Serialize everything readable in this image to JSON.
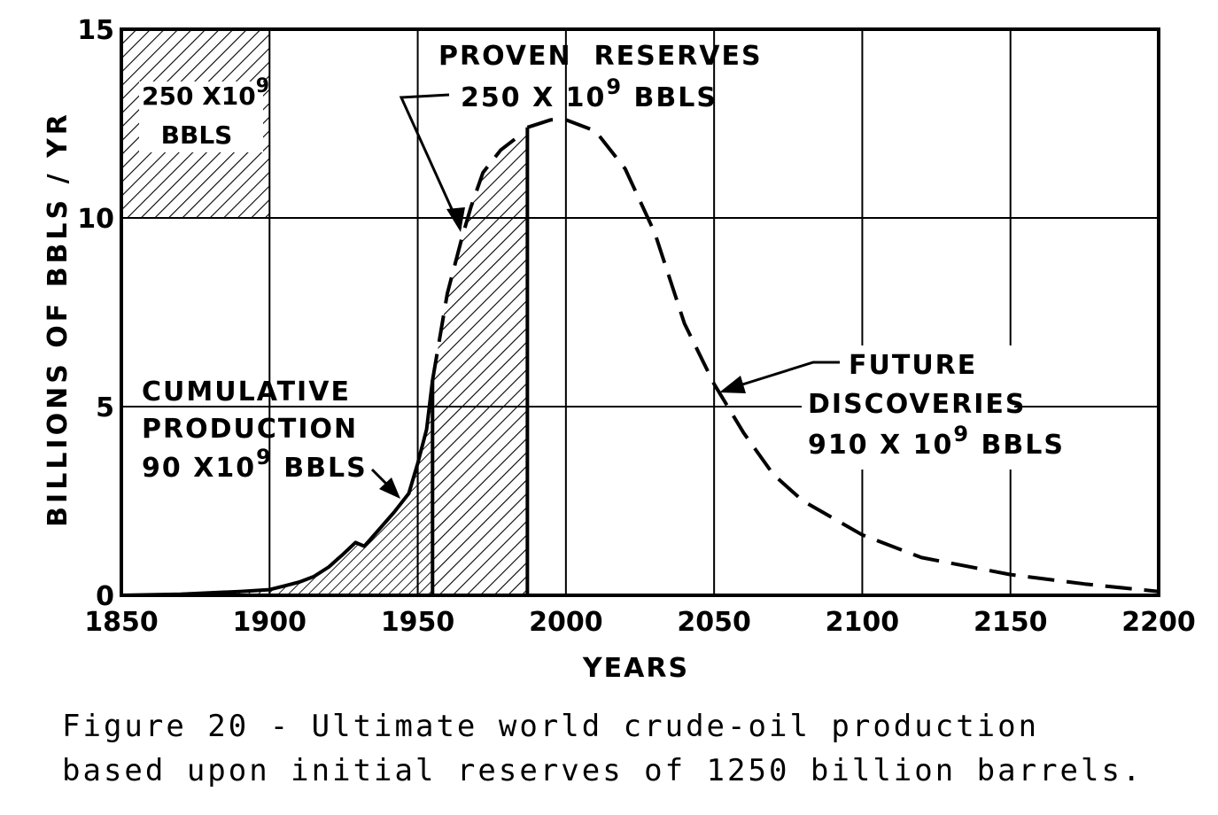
{
  "chart_data": {
    "type": "area",
    "title": "Ultimate world crude-oil production",
    "xlabel": "YEARS",
    "ylabel": "BILLIONS OF BBLS / YR",
    "xlim": [
      1850,
      2200
    ],
    "ylim": [
      0,
      15
    ],
    "xticks": [
      1850,
      1900,
      1950,
      2000,
      2050,
      2100,
      2150,
      2200
    ],
    "yticks": [
      0,
      5,
      10,
      15
    ],
    "grid": true,
    "series": [
      {
        "name": "Cumulative production (historical)",
        "style": "solid, hatched",
        "x": [
          1850,
          1870,
          1890,
          1900,
          1905,
          1910,
          1915,
          1920,
          1925,
          1929,
          1932,
          1937,
          1942,
          1947,
          1950,
          1953,
          1955
        ],
        "y": [
          0,
          0.03,
          0.1,
          0.15,
          0.25,
          0.35,
          0.5,
          0.75,
          1.1,
          1.4,
          1.3,
          1.75,
          2.2,
          2.7,
          3.5,
          4.4,
          5.7
        ]
      },
      {
        "name": "Proven reserves segment",
        "style": "dashed, hatched",
        "x": [
          1955,
          1960,
          1965,
          1968,
          1972,
          1978,
          1983,
          1987
        ],
        "y": [
          5.7,
          8.0,
          9.5,
          10.3,
          11.2,
          11.8,
          12.1,
          12.2
        ]
      },
      {
        "name": "Future discoveries (projected)",
        "style": "dashed",
        "x": [
          1987,
          1995,
          2000,
          2010,
          2020,
          2030,
          2040,
          2050,
          2060,
          2070,
          2080,
          2100,
          2120,
          2150,
          2175,
          2200
        ],
        "y": [
          12.4,
          12.6,
          12.6,
          12.3,
          11.3,
          9.6,
          7.2,
          5.6,
          4.3,
          3.2,
          2.5,
          1.6,
          1.0,
          0.55,
          0.3,
          0.1
        ]
      }
    ],
    "annotations": [
      {
        "text": [
          "250 X10",
          "9",
          "BBLS"
        ],
        "target": "legend scale box"
      },
      {
        "text": [
          "PROVEN  RESERVES",
          "250 X 10",
          "9",
          " BBLS"
        ],
        "target": "proven reserves area"
      },
      {
        "text": [
          "CUMULATIVE",
          "PRODUCTION",
          "90 X10",
          "9",
          " BBLS"
        ],
        "target": "cumulative production area"
      },
      {
        "text": [
          "FUTURE",
          "DISCOVERIES",
          "910 X 10",
          "9",
          " BBLS"
        ],
        "target": "future discoveries curve"
      }
    ]
  },
  "caption": [
    "Figure 20 - Ultimate world crude-oil production",
    "based upon initial reserves of 1250 billion barrels."
  ]
}
